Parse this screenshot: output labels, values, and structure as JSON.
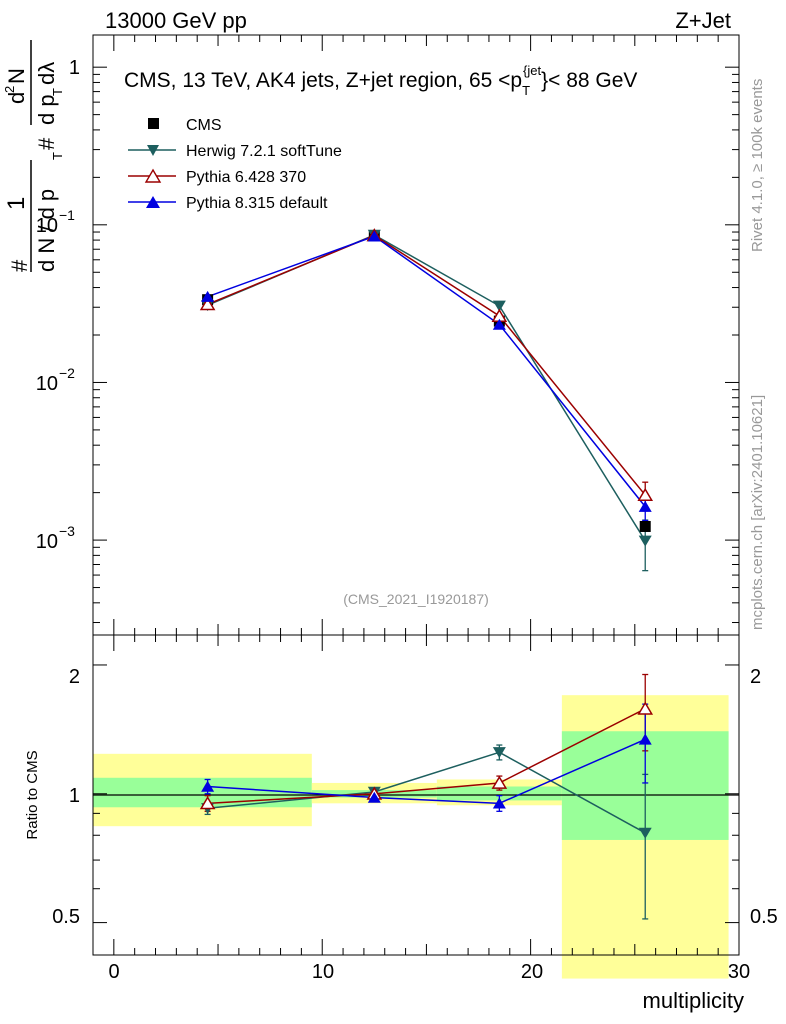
{
  "header": {
    "left_title": "13000 GeV pp",
    "right_title": "Z+Jet"
  },
  "side_labels": {
    "rivet": "Rivet 4.1.0, ≥ 100k events",
    "mcplots": "mcplots.cern.ch [arXiv:2401.10621]"
  },
  "main_plot": {
    "title_text": "CMS, 13 TeV, AK4 jets, Z+jet region, 65 <p",
    "title_sub": "T",
    "title_sup": "{jet",
    "title_end": "}< 88 GeV",
    "watermark": "(CMS_2021_I1920187)",
    "ylabel_pieces": {
      "hash": "#",
      "one": "1",
      "dN": "d N / d p",
      "T": "T",
      "d2N": "d",
      "sq": "2",
      "N": "N",
      "dpT": "d p",
      "dl": "dλ"
    },
    "yticks": [
      {
        "base": "1",
        "exp": ""
      },
      {
        "base": "10",
        "exp": "−1"
      },
      {
        "base": "10",
        "exp": "−2"
      },
      {
        "base": "10",
        "exp": "−3"
      }
    ]
  },
  "legend": [
    {
      "label": "CMS",
      "color": "#000000",
      "marker": "square"
    },
    {
      "label": "Herwig 7.2.1 softTune",
      "color": "#1d5f5f",
      "marker": "triangle-down"
    },
    {
      "label": "Pythia 6.428 370",
      "color": "#9b0000",
      "marker": "triangle-open"
    },
    {
      "label": "Pythia 8.315 default",
      "color": "#0000e0",
      "marker": "triangle-up"
    }
  ],
  "ratio_plot": {
    "ylabel": "Ratio to CMS",
    "ytick_labels": [
      "2",
      "1",
      "0.5"
    ],
    "ytick_values": [
      2,
      1,
      0.5
    ]
  },
  "xaxis": {
    "label": "multiplicity",
    "tick_labels": [
      "0",
      "10",
      "20",
      "30"
    ],
    "tick_values": [
      0,
      10,
      20,
      30
    ]
  },
  "chart_data": {
    "type": "line",
    "title": "CMS, 13 TeV, AK4 jets, Z+jet region, 65 <p_T^{jet}< 88 GeV",
    "xlabel": "multiplicity",
    "ylabel": "1/N dN/dp_T dλ",
    "xlim": [
      -1,
      30
    ],
    "ylim": [
      0.00025,
      1.6
    ],
    "yscale": "log",
    "ratio_ylim": [
      0.42,
      2.35
    ],
    "bins": [
      [
        -1,
        9.5
      ],
      [
        9.5,
        15.5
      ],
      [
        15.5,
        21.5
      ],
      [
        21.5,
        29.5
      ]
    ],
    "x": [
      4.5,
      12.5,
      18.5,
      25.5
    ],
    "data": {
      "name": "CMS",
      "values": [
        0.0335,
        0.0855,
        0.0245,
        0.00122
      ],
      "band_inner": [
        [
          0.93,
          1.09
        ],
        [
          0.98,
          1.02
        ],
        [
          0.965,
          1.04
        ],
        [
          0.78,
          1.4
        ]
      ],
      "band_outer": [
        [
          0.84,
          1.24
        ],
        [
          0.95,
          1.06
        ],
        [
          0.94,
          1.08
        ],
        [
          0.37,
          1.7
        ]
      ]
    },
    "series": [
      {
        "name": "Herwig 7.2.1 softTune",
        "color": "#1d5f5f",
        "marker": "triangle-down",
        "values": [
          0.0309,
          0.0862,
          0.0306,
          0.00099
        ],
        "errors": [
          0.0,
          0.0,
          0.0,
          0.00035
        ],
        "ratio": [
          0.925,
          1.01,
          1.25,
          0.81
        ],
        "ratio_err": [
          0.03,
          0.02,
          0.05,
          0.3
        ]
      },
      {
        "name": "Pythia 6.428 370",
        "color": "#9b0000",
        "marker": "triangle-open",
        "values": [
          0.0313,
          0.0856,
          0.0264,
          0.00193
        ],
        "errors": [
          0.0,
          0.0,
          0.0,
          0.0004
        ],
        "ratio": [
          0.95,
          1.0,
          1.06,
          1.58
        ],
        "ratio_err": [
          0.04,
          0.02,
          0.04,
          0.32
        ]
      },
      {
        "name": "Pythia 8.315 default",
        "color": "#0000e0",
        "marker": "triangle-up",
        "values": [
          0.035,
          0.0846,
          0.0233,
          0.00163
        ],
        "errors": [
          0.0,
          0.0,
          0.0,
          0.0003
        ],
        "ratio": [
          1.04,
          0.98,
          0.95,
          1.34
        ],
        "ratio_err": [
          0.04,
          0.02,
          0.04,
          0.28
        ]
      }
    ]
  }
}
